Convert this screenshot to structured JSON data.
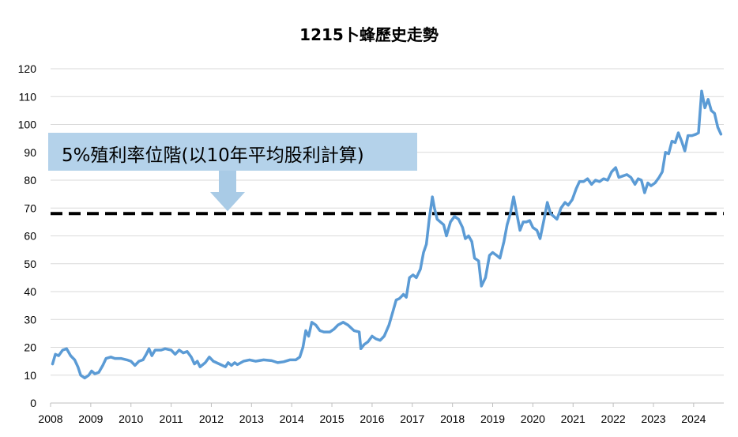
{
  "title": "1215卜蜂歷史走勢",
  "annotation": {
    "text": "5%殖利率位階(以10年平均股利計算)",
    "level": 68
  },
  "colors": {
    "line": "#5b9bd5",
    "reference_line": "#000000",
    "callout_fill": "#b4d2ea",
    "callout_arrow": "#a9cbe6",
    "grid": "#d9d9d9"
  },
  "chart_data": {
    "type": "line",
    "title": "1215卜蜂歷史走勢",
    "xlabel": "",
    "ylabel": "",
    "xlim": [
      2008,
      2024.75
    ],
    "ylim": [
      0,
      120
    ],
    "y_ticks": [
      0,
      10,
      20,
      30,
      40,
      50,
      60,
      70,
      80,
      90,
      100,
      110,
      120
    ],
    "x_ticks": [
      2008,
      2009,
      2010,
      2011,
      2012,
      2013,
      2014,
      2015,
      2016,
      2017,
      2018,
      2019,
      2020,
      2021,
      2022,
      2023,
      2024
    ],
    "grid": true,
    "series": [
      {
        "name": "",
        "points": [
          [
            2008.05,
            14
          ],
          [
            2008.12,
            17.5
          ],
          [
            2008.2,
            17
          ],
          [
            2008.3,
            19
          ],
          [
            2008.4,
            19.5
          ],
          [
            2008.5,
            17
          ],
          [
            2008.6,
            15.5
          ],
          [
            2008.68,
            13
          ],
          [
            2008.75,
            10
          ],
          [
            2008.85,
            9
          ],
          [
            2008.95,
            10
          ],
          [
            2009.02,
            11.5
          ],
          [
            2009.1,
            10.5
          ],
          [
            2009.2,
            11
          ],
          [
            2009.3,
            13.5
          ],
          [
            2009.38,
            16
          ],
          [
            2009.5,
            16.5
          ],
          [
            2009.6,
            16
          ],
          [
            2009.75,
            16
          ],
          [
            2009.9,
            15.5
          ],
          [
            2010.0,
            15
          ],
          [
            2010.1,
            13.5
          ],
          [
            2010.2,
            15
          ],
          [
            2010.3,
            15.5
          ],
          [
            2010.38,
            17.5
          ],
          [
            2010.45,
            19.5
          ],
          [
            2010.52,
            17
          ],
          [
            2010.6,
            19
          ],
          [
            2010.75,
            19
          ],
          [
            2010.85,
            19.5
          ],
          [
            2011.0,
            19
          ],
          [
            2011.1,
            17.5
          ],
          [
            2011.2,
            19
          ],
          [
            2011.3,
            18
          ],
          [
            2011.4,
            18.5
          ],
          [
            2011.5,
            16.5
          ],
          [
            2011.58,
            14
          ],
          [
            2011.65,
            15
          ],
          [
            2011.72,
            13
          ],
          [
            2011.85,
            14.5
          ],
          [
            2011.95,
            16.5
          ],
          [
            2012.05,
            15
          ],
          [
            2012.2,
            14
          ],
          [
            2012.35,
            13
          ],
          [
            2012.42,
            14.5
          ],
          [
            2012.5,
            13.5
          ],
          [
            2012.58,
            14.5
          ],
          [
            2012.65,
            13.8
          ],
          [
            2012.8,
            15
          ],
          [
            2012.95,
            15.5
          ],
          [
            2013.1,
            15
          ],
          [
            2013.3,
            15.5
          ],
          [
            2013.5,
            15.2
          ],
          [
            2013.65,
            14.5
          ],
          [
            2013.8,
            14.8
          ],
          [
            2013.95,
            15.5
          ],
          [
            2014.1,
            15.5
          ],
          [
            2014.2,
            16.5
          ],
          [
            2014.28,
            20
          ],
          [
            2014.35,
            26
          ],
          [
            2014.42,
            24
          ],
          [
            2014.5,
            29
          ],
          [
            2014.6,
            28
          ],
          [
            2014.7,
            26
          ],
          [
            2014.8,
            25.5
          ],
          [
            2014.95,
            25.5
          ],
          [
            2015.05,
            26.5
          ],
          [
            2015.15,
            28
          ],
          [
            2015.28,
            29
          ],
          [
            2015.4,
            28
          ],
          [
            2015.55,
            26
          ],
          [
            2015.68,
            25.5
          ],
          [
            2015.72,
            19.5
          ],
          [
            2015.8,
            21
          ],
          [
            2015.9,
            22
          ],
          [
            2016.0,
            24
          ],
          [
            2016.1,
            23
          ],
          [
            2016.2,
            22.5
          ],
          [
            2016.3,
            24
          ],
          [
            2016.42,
            28
          ],
          [
            2016.52,
            33
          ],
          [
            2016.6,
            37
          ],
          [
            2016.68,
            37.5
          ],
          [
            2016.78,
            39
          ],
          [
            2016.85,
            38
          ],
          [
            2016.93,
            45
          ],
          [
            2017.02,
            46
          ],
          [
            2017.1,
            45
          ],
          [
            2017.2,
            48
          ],
          [
            2017.28,
            54
          ],
          [
            2017.35,
            57
          ],
          [
            2017.42,
            66
          ],
          [
            2017.5,
            74
          ],
          [
            2017.55,
            70
          ],
          [
            2017.62,
            66
          ],
          [
            2017.7,
            65
          ],
          [
            2017.78,
            64
          ],
          [
            2017.85,
            60
          ],
          [
            2017.95,
            65
          ],
          [
            2018.05,
            67
          ],
          [
            2018.15,
            66
          ],
          [
            2018.25,
            63
          ],
          [
            2018.32,
            59
          ],
          [
            2018.4,
            60
          ],
          [
            2018.48,
            58
          ],
          [
            2018.55,
            52
          ],
          [
            2018.65,
            51
          ],
          [
            2018.72,
            42
          ],
          [
            2018.82,
            45
          ],
          [
            2018.92,
            53
          ],
          [
            2019.0,
            54
          ],
          [
            2019.1,
            53
          ],
          [
            2019.18,
            52
          ],
          [
            2019.28,
            58
          ],
          [
            2019.36,
            64
          ],
          [
            2019.44,
            68
          ],
          [
            2019.52,
            74
          ],
          [
            2019.6,
            68
          ],
          [
            2019.68,
            62
          ],
          [
            2019.76,
            65
          ],
          [
            2019.84,
            65
          ],
          [
            2019.92,
            65.5
          ],
          [
            2020.0,
            63
          ],
          [
            2020.1,
            62
          ],
          [
            2020.18,
            59
          ],
          [
            2020.28,
            66
          ],
          [
            2020.36,
            72
          ],
          [
            2020.44,
            68
          ],
          [
            2020.52,
            67
          ],
          [
            2020.6,
            66
          ],
          [
            2020.7,
            70
          ],
          [
            2020.8,
            72
          ],
          [
            2020.88,
            71
          ],
          [
            2020.98,
            73
          ],
          [
            2021.08,
            77
          ],
          [
            2021.16,
            79.5
          ],
          [
            2021.26,
            79.5
          ],
          [
            2021.36,
            80.5
          ],
          [
            2021.46,
            78.5
          ],
          [
            2021.56,
            80
          ],
          [
            2021.66,
            79.5
          ],
          [
            2021.76,
            80.5
          ],
          [
            2021.86,
            80
          ],
          [
            2021.96,
            83
          ],
          [
            2022.06,
            84.5
          ],
          [
            2022.14,
            81
          ],
          [
            2022.24,
            81.5
          ],
          [
            2022.34,
            82
          ],
          [
            2022.44,
            81
          ],
          [
            2022.54,
            78.5
          ],
          [
            2022.62,
            80.5
          ],
          [
            2022.7,
            80
          ],
          [
            2022.78,
            75.5
          ],
          [
            2022.86,
            79
          ],
          [
            2022.94,
            78
          ],
          [
            2023.04,
            79
          ],
          [
            2023.14,
            81
          ],
          [
            2023.22,
            83
          ],
          [
            2023.3,
            90
          ],
          [
            2023.38,
            89.5
          ],
          [
            2023.46,
            94
          ],
          [
            2023.54,
            93.5
          ],
          [
            2023.62,
            97
          ],
          [
            2023.7,
            94
          ],
          [
            2023.78,
            90.5
          ],
          [
            2023.86,
            96
          ],
          [
            2023.96,
            96
          ],
          [
            2024.06,
            96.5
          ],
          [
            2024.12,
            97
          ],
          [
            2024.2,
            112
          ],
          [
            2024.28,
            106
          ],
          [
            2024.36,
            109
          ],
          [
            2024.44,
            105
          ],
          [
            2024.52,
            104
          ],
          [
            2024.6,
            99
          ],
          [
            2024.68,
            96.5
          ]
        ]
      }
    ]
  }
}
